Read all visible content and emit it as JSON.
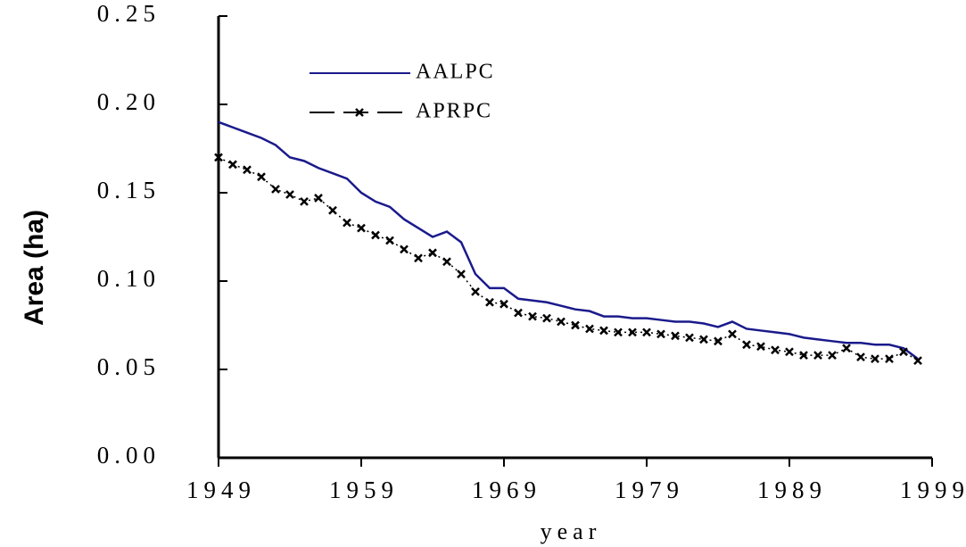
{
  "chart_data": {
    "type": "line",
    "x_label": "year",
    "y_label": "Area (ha)",
    "x": [
      1949,
      1950,
      1951,
      1952,
      1953,
      1954,
      1955,
      1956,
      1957,
      1958,
      1959,
      1960,
      1961,
      1962,
      1963,
      1964,
      1965,
      1966,
      1967,
      1968,
      1969,
      1970,
      1971,
      1972,
      1973,
      1974,
      1975,
      1976,
      1977,
      1978,
      1979,
      1980,
      1981,
      1982,
      1983,
      1984,
      1985,
      1986,
      1987,
      1988,
      1989,
      1990,
      1991,
      1992,
      1993,
      1994,
      1995,
      1996,
      1997,
      1998
    ],
    "series": [
      {
        "name": "AALPC",
        "color": "#1a1a8c",
        "values": [
          0.19,
          0.187,
          0.184,
          0.181,
          0.177,
          0.17,
          0.168,
          0.164,
          0.161,
          0.158,
          0.15,
          0.145,
          0.142,
          0.135,
          0.13,
          0.125,
          0.128,
          0.122,
          0.104,
          0.096,
          0.096,
          0.09,
          0.089,
          0.088,
          0.086,
          0.084,
          0.083,
          0.08,
          0.08,
          0.079,
          0.079,
          0.078,
          0.077,
          0.077,
          0.076,
          0.074,
          0.077,
          0.073,
          0.072,
          0.071,
          0.07,
          0.068,
          0.067,
          0.066,
          0.065,
          0.065,
          0.064,
          0.064,
          0.062,
          0.056
        ]
      },
      {
        "name": "APRPC",
        "color": "#000000",
        "values": [
          0.17,
          0.166,
          0.163,
          0.159,
          0.152,
          0.149,
          0.145,
          0.147,
          0.14,
          0.133,
          0.13,
          0.126,
          0.123,
          0.118,
          0.113,
          0.116,
          0.111,
          0.104,
          0.094,
          0.088,
          0.087,
          0.082,
          0.08,
          0.079,
          0.077,
          0.075,
          0.073,
          0.072,
          0.071,
          0.071,
          0.071,
          0.07,
          0.069,
          0.068,
          0.067,
          0.066,
          0.07,
          0.064,
          0.063,
          0.061,
          0.06,
          0.058,
          0.058,
          0.058,
          0.062,
          0.057,
          0.056,
          0.056,
          0.06,
          0.055
        ]
      }
    ],
    "xlim": [
      1949,
      1999
    ],
    "xticks": [
      1949,
      1959,
      1969,
      1979,
      1989,
      1999
    ],
    "ylim": [
      0,
      0.25
    ],
    "yticks": [
      {
        "value": 0,
        "label": "0.00"
      },
      {
        "value": 0.05,
        "label": "0.05"
      },
      {
        "value": 0.1,
        "label": "0.10"
      },
      {
        "value": 0.15,
        "label": "0.15"
      },
      {
        "value": 0.2,
        "label": "0.20"
      },
      {
        "value": 0.25,
        "label": "0.25"
      }
    ],
    "grid": false
  }
}
